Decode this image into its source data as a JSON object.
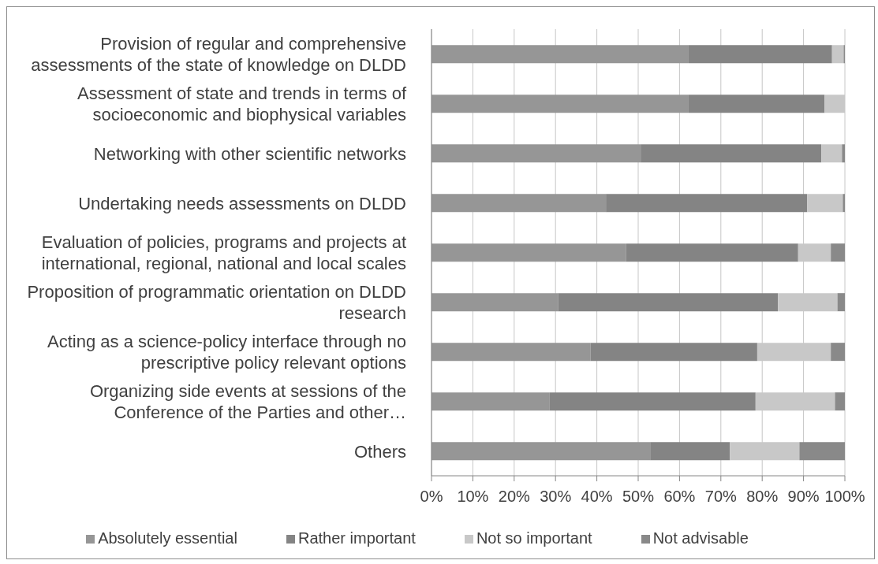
{
  "chart_data": {
    "type": "bar",
    "orientation": "horizontal",
    "stacked": true,
    "categories": [
      "Provision of regular and comprehensive assessments of the state of knowledge on DLDD",
      "Assessment of state and trends in terms of socioeconomic and biophysical variables",
      "Networking with other scientific networks",
      "Undertaking needs assessments on DLDD",
      "Evaluation of policies, programs and projects at international, regional, national and local scales",
      "Proposition of programmatic orientation on DLDD research",
      "Acting as a science-policy interface through no prescriptive policy relevant options",
      "Organizing side events at sessions of the Conference of the Parties and other…",
      "Others"
    ],
    "series": [
      {
        "name": "Absolutely essential",
        "color": "#969696",
        "values": [
          62.2,
          62.2,
          50.6,
          42.2,
          47.1,
          30.6,
          38.5,
          28.6,
          52.9
        ]
      },
      {
        "name": "Rather important",
        "color": "#848484",
        "values": [
          34.7,
          32.9,
          43.7,
          48.7,
          41.6,
          53.2,
          40.3,
          49.8,
          19.3
        ]
      },
      {
        "name": "Not so important",
        "color": "#c8c8c8",
        "values": [
          2.8,
          4.9,
          5.0,
          8.6,
          7.9,
          14.4,
          17.8,
          19.2,
          16.8
        ]
      },
      {
        "name": "Not advisable",
        "color": "#898989",
        "values": [
          0.3,
          0,
          0.7,
          0.5,
          3.4,
          1.8,
          3.4,
          2.4,
          11.0
        ]
      }
    ],
    "xlim": [
      0,
      100
    ],
    "xticks": [
      {
        "value": 0,
        "label": "0%"
      },
      {
        "value": 10,
        "label": "10%"
      },
      {
        "value": 20,
        "label": "20%"
      },
      {
        "value": 30,
        "label": "30%"
      },
      {
        "value": 40,
        "label": "40%"
      },
      {
        "value": 50,
        "label": "50%"
      },
      {
        "value": 60,
        "label": "60%"
      },
      {
        "value": 70,
        "label": "70%"
      },
      {
        "value": 80,
        "label": "80%"
      },
      {
        "value": 90,
        "label": "90%"
      },
      {
        "value": 100,
        "label": "100%"
      }
    ],
    "grid": "x",
    "legend": "bottom"
  }
}
